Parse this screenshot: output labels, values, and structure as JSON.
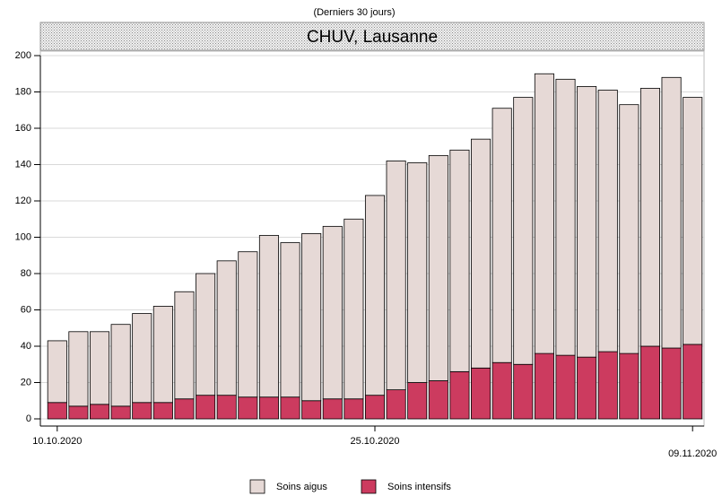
{
  "chart_data": {
    "type": "stacked_bar",
    "subtitle": "(Derniers 30 jours)",
    "title": "CHUV, Lausanne",
    "categories": [
      "10.10.2020",
      null,
      null,
      null,
      null,
      null,
      null,
      null,
      null,
      null,
      null,
      null,
      null,
      null,
      null,
      "25.10.2020",
      null,
      null,
      null,
      null,
      null,
      null,
      null,
      null,
      null,
      null,
      null,
      null,
      null,
      null,
      "09.11.2020"
    ],
    "series": [
      {
        "name": "Soins aigus",
        "color": "#e6d9d6",
        "values": [
          34,
          41,
          40,
          45,
          49,
          53,
          59,
          67,
          74,
          80,
          89,
          85,
          92,
          95,
          99,
          110,
          126,
          121,
          124,
          122,
          126,
          140,
          147,
          154,
          152,
          149,
          144,
          137,
          142,
          149,
          136
        ]
      },
      {
        "name": "Soins intensifs",
        "color": "#cc3b5f",
        "values": [
          9,
          7,
          8,
          7,
          9,
          9,
          11,
          13,
          13,
          12,
          12,
          12,
          10,
          11,
          11,
          13,
          16,
          20,
          21,
          26,
          28,
          31,
          30,
          36,
          35,
          34,
          37,
          36,
          40,
          39,
          41
        ]
      }
    ],
    "stack_order": [
      "Soins intensifs",
      "Soins aigus"
    ],
    "ylim": [
      0,
      200
    ],
    "yticks": [
      0,
      20,
      40,
      60,
      80,
      100,
      120,
      140,
      160,
      180,
      200
    ],
    "grid": true
  }
}
